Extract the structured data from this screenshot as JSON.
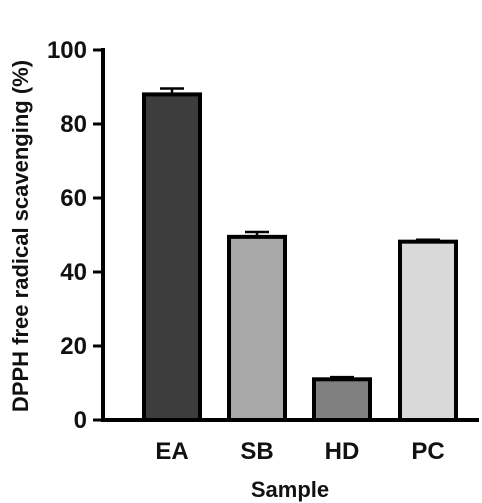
{
  "chart_data": {
    "type": "bar",
    "title": "",
    "xlabel": "Sample",
    "ylabel": "DPPH free radical scavenging (%)",
    "ylim": [
      0,
      100
    ],
    "yticks": [
      0,
      20,
      40,
      60,
      80,
      100
    ],
    "grid": false,
    "categories": [
      "EA",
      "SB",
      "HD",
      "PC"
    ],
    "values": [
      88.0,
      49.5,
      11.0,
      48.2
    ],
    "errors": [
      1.6,
      1.3,
      0.6,
      0.5
    ],
    "colors": [
      "#3d3d3d",
      "#a8a8a8",
      "#808080",
      "#d9d9d9"
    ]
  }
}
